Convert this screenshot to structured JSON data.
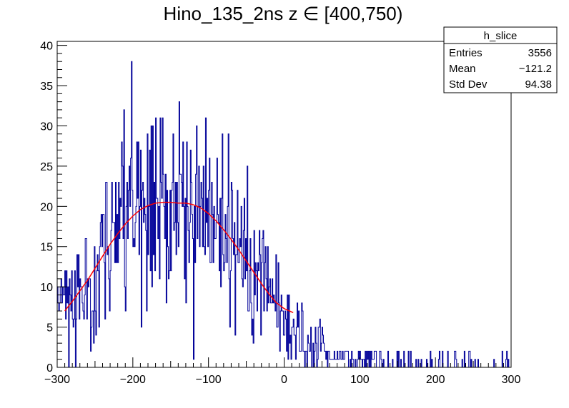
{
  "chart_data": {
    "type": "histogram",
    "title": "Hino_135_2ns z  ∈ [400,750)",
    "xlabel": "",
    "ylabel": "",
    "xlim": [
      -300,
      300
    ],
    "ylim": [
      0,
      40.5
    ],
    "x_ticks": [
      "−300",
      "−200",
      "−100",
      "0",
      "100",
      "200",
      "300"
    ],
    "x_tick_values": [
      -300,
      -200,
      -100,
      0,
      100,
      200,
      300
    ],
    "y_ticks": [
      "0",
      "5",
      "10",
      "15",
      "20",
      "25",
      "30",
      "35",
      "40"
    ],
    "y_tick_values": [
      0,
      5,
      10,
      15,
      20,
      25,
      30,
      35,
      40
    ],
    "bin_width": 1,
    "bin_edges_start": -300,
    "line_color": "#000099",
    "fit_color": "#ff0000",
    "fit": {
      "type": "gaus",
      "x_range": [
        -290,
        12
      ],
      "points": [
        [
          -290,
          7.0
        ],
        [
          -280,
          8.2
        ],
        [
          -270,
          9.5
        ],
        [
          -260,
          10.8
        ],
        [
          -250,
          12.3
        ],
        [
          -240,
          13.8
        ],
        [
          -230,
          15.3
        ],
        [
          -220,
          16.6
        ],
        [
          -210,
          17.8
        ],
        [
          -200,
          18.8
        ],
        [
          -190,
          19.6
        ],
        [
          -180,
          20.1
        ],
        [
          -170,
          20.4
        ],
        [
          -160,
          20.5
        ],
        [
          -150,
          20.5
        ],
        [
          -140,
          20.4
        ],
        [
          -130,
          20.4
        ],
        [
          -120,
          20.2
        ],
        [
          -110,
          19.8
        ],
        [
          -100,
          19.1
        ],
        [
          -90,
          18.2
        ],
        [
          -80,
          17.1
        ],
        [
          -70,
          15.9
        ],
        [
          -60,
          14.6
        ],
        [
          -50,
          13.2
        ],
        [
          -40,
          11.8
        ],
        [
          -30,
          10.4
        ],
        [
          -20,
          9.1
        ],
        [
          -10,
          8.0
        ],
        [
          0,
          7.3
        ],
        [
          12,
          6.8
        ]
      ]
    },
    "envelope": [
      [
        -300,
        6
      ],
      [
        -290,
        8
      ],
      [
        -280,
        9
      ],
      [
        -270,
        10
      ],
      [
        -260,
        11
      ],
      [
        -250,
        12
      ],
      [
        -240,
        14
      ],
      [
        -230,
        15
      ],
      [
        -220,
        17
      ],
      [
        -210,
        18
      ],
      [
        -200,
        19
      ],
      [
        -190,
        20
      ],
      [
        -180,
        20.5
      ],
      [
        -170,
        20.5
      ],
      [
        -160,
        20.5
      ],
      [
        -150,
        21
      ],
      [
        -140,
        21
      ],
      [
        -130,
        21
      ],
      [
        -120,
        20.5
      ],
      [
        -110,
        20
      ],
      [
        -100,
        19
      ],
      [
        -90,
        18
      ],
      [
        -80,
        17
      ],
      [
        -70,
        16
      ],
      [
        -60,
        14.5
      ],
      [
        -50,
        13
      ],
      [
        -40,
        11.5
      ],
      [
        -30,
        10.5
      ],
      [
        -20,
        9
      ],
      [
        -10,
        7.5
      ],
      [
        0,
        6.5
      ],
      [
        10,
        5
      ],
      [
        20,
        4
      ],
      [
        30,
        3.5
      ],
      [
        40,
        3
      ],
      [
        50,
        2.5
      ],
      [
        60,
        2
      ],
      [
        70,
        1.8
      ],
      [
        80,
        1.5
      ],
      [
        90,
        1.3
      ],
      [
        100,
        1
      ],
      [
        120,
        0.8
      ],
      [
        140,
        0.6
      ],
      [
        160,
        0.5
      ],
      [
        180,
        0.4
      ],
      [
        200,
        0.35
      ],
      [
        220,
        0.3
      ],
      [
        240,
        0.25
      ],
      [
        260,
        0.2
      ],
      [
        280,
        0.15
      ],
      [
        300,
        0.1
      ]
    ],
    "stats": {
      "name": "h_slice",
      "rows": [
        {
          "label": "Entries",
          "value": "3556"
        },
        {
          "label": "Mean",
          "value": "−121.2"
        },
        {
          "label": "Std Dev",
          "value": "94.38"
        }
      ]
    }
  }
}
